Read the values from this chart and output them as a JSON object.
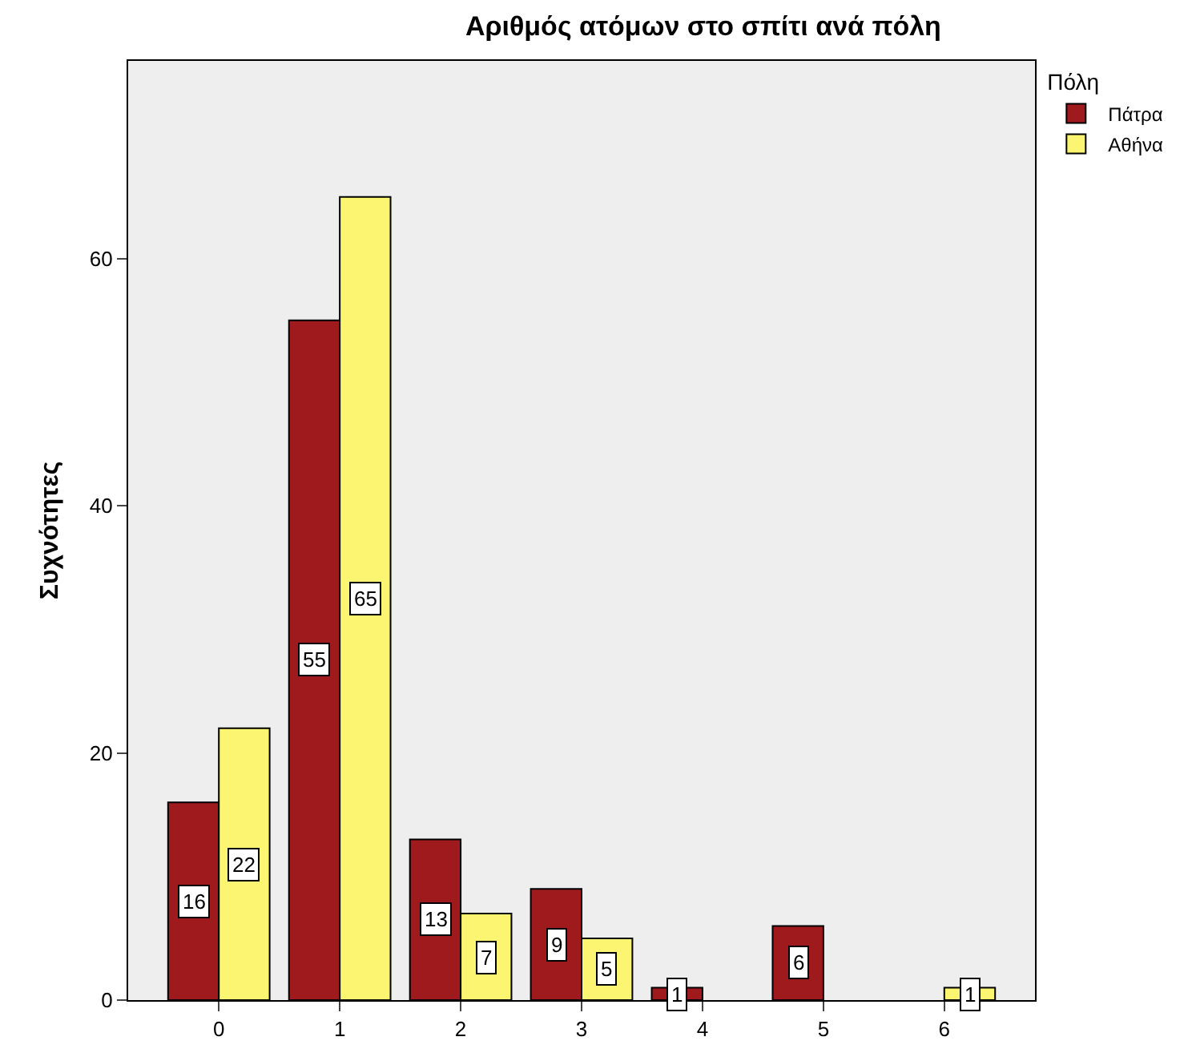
{
  "chart_data": {
    "type": "bar",
    "title": "Αριθμός ατόμων στο σπίτι ανά πόλη",
    "ylabel": "Συχνότητες",
    "legend_title": "Πόλη",
    "categories": [
      "0",
      "1",
      "2",
      "3",
      "4",
      "5",
      "6"
    ],
    "series": [
      {
        "name": "Πάτρα",
        "color": "#9e1a1c",
        "values": [
          16,
          55,
          13,
          9,
          1,
          6,
          null
        ]
      },
      {
        "name": "Αθήνα",
        "color": "#fbf571",
        "values": [
          22,
          65,
          7,
          5,
          null,
          null,
          1
        ]
      }
    ],
    "ylim": [
      0,
      76
    ],
    "yticks": [
      0,
      20,
      40,
      60
    ],
    "grid": false,
    "legend": "top right",
    "data_labels": true
  }
}
